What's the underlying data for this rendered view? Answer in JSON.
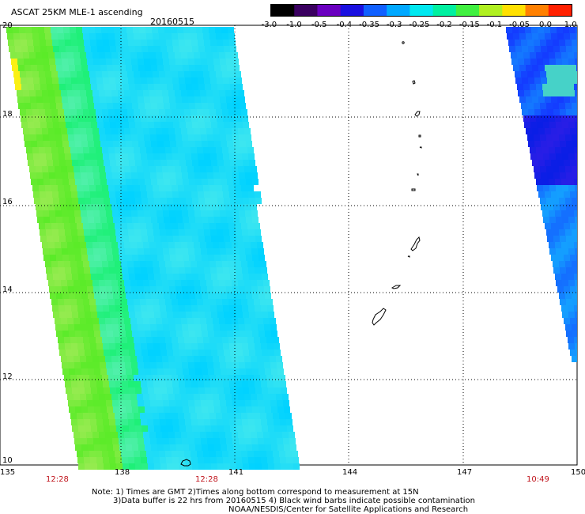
{
  "header": {
    "title": "ASCAT 25KM MLE-1 ascending",
    "date": "20160515"
  },
  "colorbar": {
    "ticks": [
      "-3.0",
      "-1.0",
      "-0.5",
      "-0.4",
      "-0.35",
      "-0.3",
      "-0.25",
      "-0.2",
      "-0.15",
      "-0.1",
      "-0.05",
      "0.0",
      "1.0"
    ],
    "colors": [
      "#000000",
      "#3a0060",
      "#6a00c0",
      "#1a10e0",
      "#1060ff",
      "#00a8ff",
      "#00e8f0",
      "#00f0a0",
      "#40f040",
      "#b0f020",
      "#ffe000",
      "#ff8000",
      "#ff2000"
    ]
  },
  "axes": {
    "lat_labels": [
      "20",
      "18",
      "16",
      "14",
      "12",
      "10"
    ],
    "lon_labels": [
      "135",
      "138",
      "141",
      "144",
      "147",
      "150"
    ]
  },
  "pass_times": [
    "12:28",
    "12:28",
    "10:49"
  ],
  "notes": {
    "line1": "Note: 1) Times are GMT 2)Times along bottom correspond to measurement at 15N",
    "line2": "3)Data buffer is 22 hrs from 20160515 4) Black wind barbs indicate possible contamination",
    "line3": "NOAA/NESDIS/Center for Satellite Applications and Research"
  }
}
